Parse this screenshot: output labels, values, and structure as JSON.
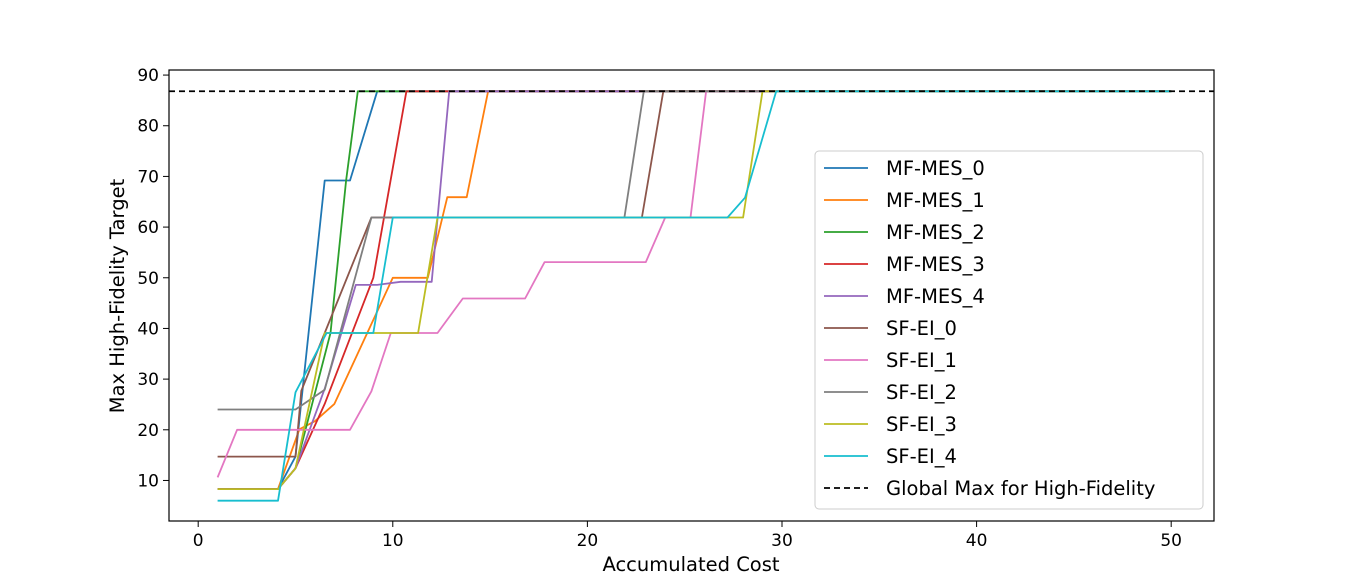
{
  "chart_data": {
    "type": "line",
    "title": "",
    "xlabel": "Accumulated Cost",
    "ylabel": "Max High-Fidelity Target",
    "xlim": [
      -1.5,
      52.2
    ],
    "ylim": [
      2,
      91
    ],
    "xticks": [
      0,
      10,
      20,
      30,
      40,
      50
    ],
    "yticks": [
      10,
      20,
      30,
      40,
      50,
      60,
      70,
      80,
      90
    ],
    "grid": false,
    "legend_position": "center-right",
    "series": [
      {
        "name": "MF-MES_0",
        "color": "#1f77b4",
        "x": [
          1,
          4.1,
          5,
          6.5,
          7.8,
          9.2,
          50
        ],
        "y": [
          8.3,
          8.3,
          14.7,
          69.2,
          69.2,
          86.8,
          86.8
        ]
      },
      {
        "name": "MF-MES_1",
        "color": "#ff7f0e",
        "x": [
          1,
          4.1,
          5.2,
          6,
          7,
          10,
          11.8,
          12.8,
          13.8,
          14.9,
          50
        ],
        "y": [
          8.3,
          8.3,
          20.1,
          21.7,
          25.1,
          50.0,
          50.0,
          65.9,
          65.9,
          86.8,
          86.8
        ]
      },
      {
        "name": "MF-MES_2",
        "color": "#2ca02c",
        "x": [
          1,
          4.1,
          5,
          6.8,
          7.6,
          8.2,
          50
        ],
        "y": [
          8.3,
          8.3,
          12.4,
          39.1,
          69.2,
          86.8,
          86.8
        ]
      },
      {
        "name": "MF-MES_3",
        "color": "#d62728",
        "x": [
          1,
          4.1,
          5,
          6.5,
          9,
          10.7,
          50
        ],
        "y": [
          8.3,
          8.3,
          12.4,
          25.1,
          50.0,
          86.8,
          86.8
        ]
      },
      {
        "name": "MF-MES_4",
        "color": "#9467bd",
        "x": [
          1,
          4.1,
          5,
          6.5,
          8.1,
          9.2,
          10.4,
          12,
          12.9,
          50
        ],
        "y": [
          8.3,
          8.3,
          12.4,
          28.1,
          48.6,
          48.6,
          49.2,
          49.2,
          86.8,
          86.8
        ]
      },
      {
        "name": "SF-EI_0",
        "color": "#8c564b",
        "x": [
          1,
          5,
          5.3,
          6.5,
          8.9,
          22.8,
          23.9,
          50
        ],
        "y": [
          14.7,
          14.7,
          27.7,
          39.1,
          61.9,
          61.9,
          86.8,
          86.8
        ]
      },
      {
        "name": "SF-EI_1",
        "color": "#e377c2",
        "x": [
          1,
          2,
          7.8,
          8.9,
          9.9,
          12.3,
          13.6,
          16.8,
          17.8,
          23,
          24,
          25.3,
          26.1,
          50
        ],
        "y": [
          10.6,
          20.0,
          20.0,
          27.6,
          39.1,
          39.1,
          45.9,
          45.9,
          53.1,
          53.1,
          61.9,
          61.9,
          86.8,
          86.8
        ]
      },
      {
        "name": "SF-EI_2",
        "color": "#7f7f7f",
        "x": [
          1,
          5,
          6.5,
          8.9,
          21.9,
          22.9,
          50
        ],
        "y": [
          24.0,
          24.0,
          27.9,
          61.9,
          61.9,
          86.8,
          86.8
        ]
      },
      {
        "name": "SF-EI_3",
        "color": "#bcbd22",
        "x": [
          1,
          4.1,
          5,
          6.5,
          8.9,
          11.3,
          12.3,
          28,
          29,
          50
        ],
        "y": [
          8.3,
          8.3,
          12.4,
          39.1,
          39.1,
          39.1,
          61.9,
          61.9,
          86.8,
          86.8
        ]
      },
      {
        "name": "SF-EI_4",
        "color": "#17becf",
        "x": [
          1,
          4.1,
          5,
          6.6,
          9,
          10,
          27.2,
          28.1,
          29.7,
          50
        ],
        "y": [
          6.0,
          6.0,
          27.4,
          39.1,
          39.1,
          61.9,
          61.9,
          65.8,
          86.8,
          86.8
        ]
      }
    ],
    "reference_line": {
      "name": "Global Max for High-Fidelity",
      "y": 86.8,
      "color": "#000000",
      "style": "dashed"
    }
  }
}
